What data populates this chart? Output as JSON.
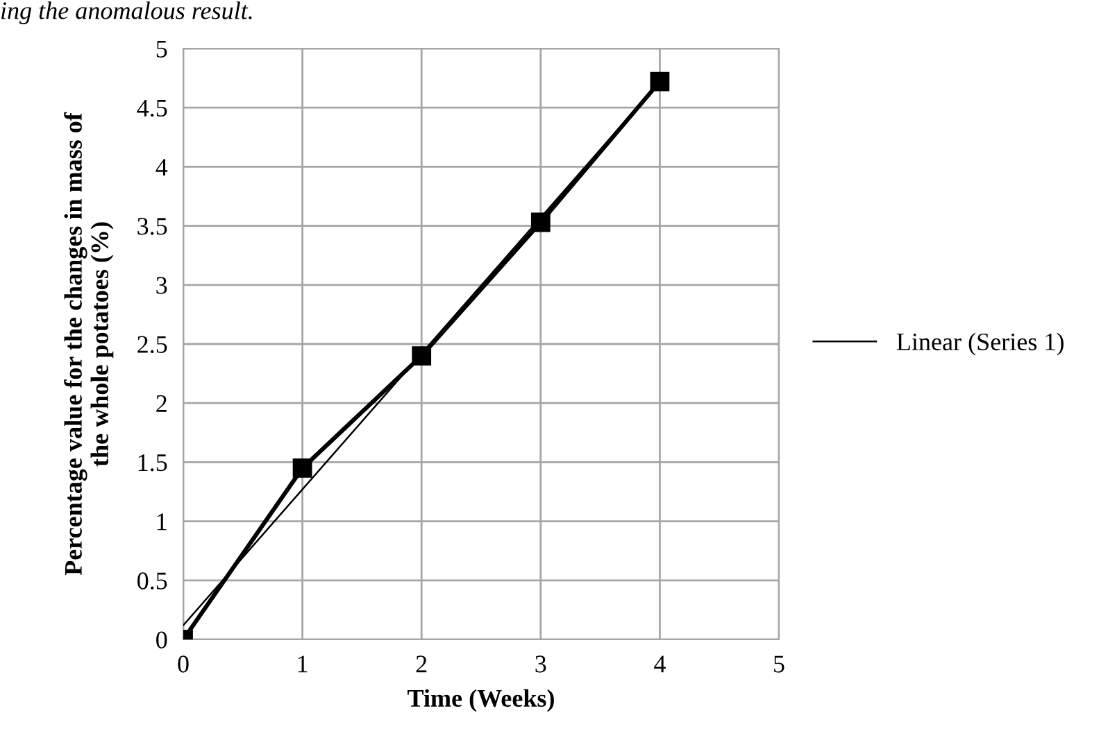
{
  "chart_data": {
    "type": "line",
    "xlabel": "Time (Weeks)",
    "ylabel": "Percentage value for the changes in mass of\nthe whole potatoes (%)",
    "annotations": [
      "ing the anomalous result."
    ],
    "x": [
      0,
      1,
      2,
      3,
      4
    ],
    "series": [
      {
        "color": "#000000",
        "values": [
          0,
          1.45,
          2.4,
          3.53,
          4.72
        ],
        "marker": "square"
      },
      {
        "name": "Linear (Series 1)",
        "color": "#000000",
        "x": [
          0,
          4
        ],
        "values": [
          0.12,
          4.72
        ],
        "marker": "none"
      }
    ],
    "xlim": [
      0,
      5
    ],
    "xticks": [
      0,
      1,
      2,
      3,
      4,
      5
    ],
    "ylim": [
      0,
      5
    ],
    "yticks": [
      0,
      0.5,
      1,
      1.5,
      2,
      2.5,
      3,
      3.5,
      4,
      4.5,
      5
    ],
    "grid": true,
    "legend": "right"
  }
}
